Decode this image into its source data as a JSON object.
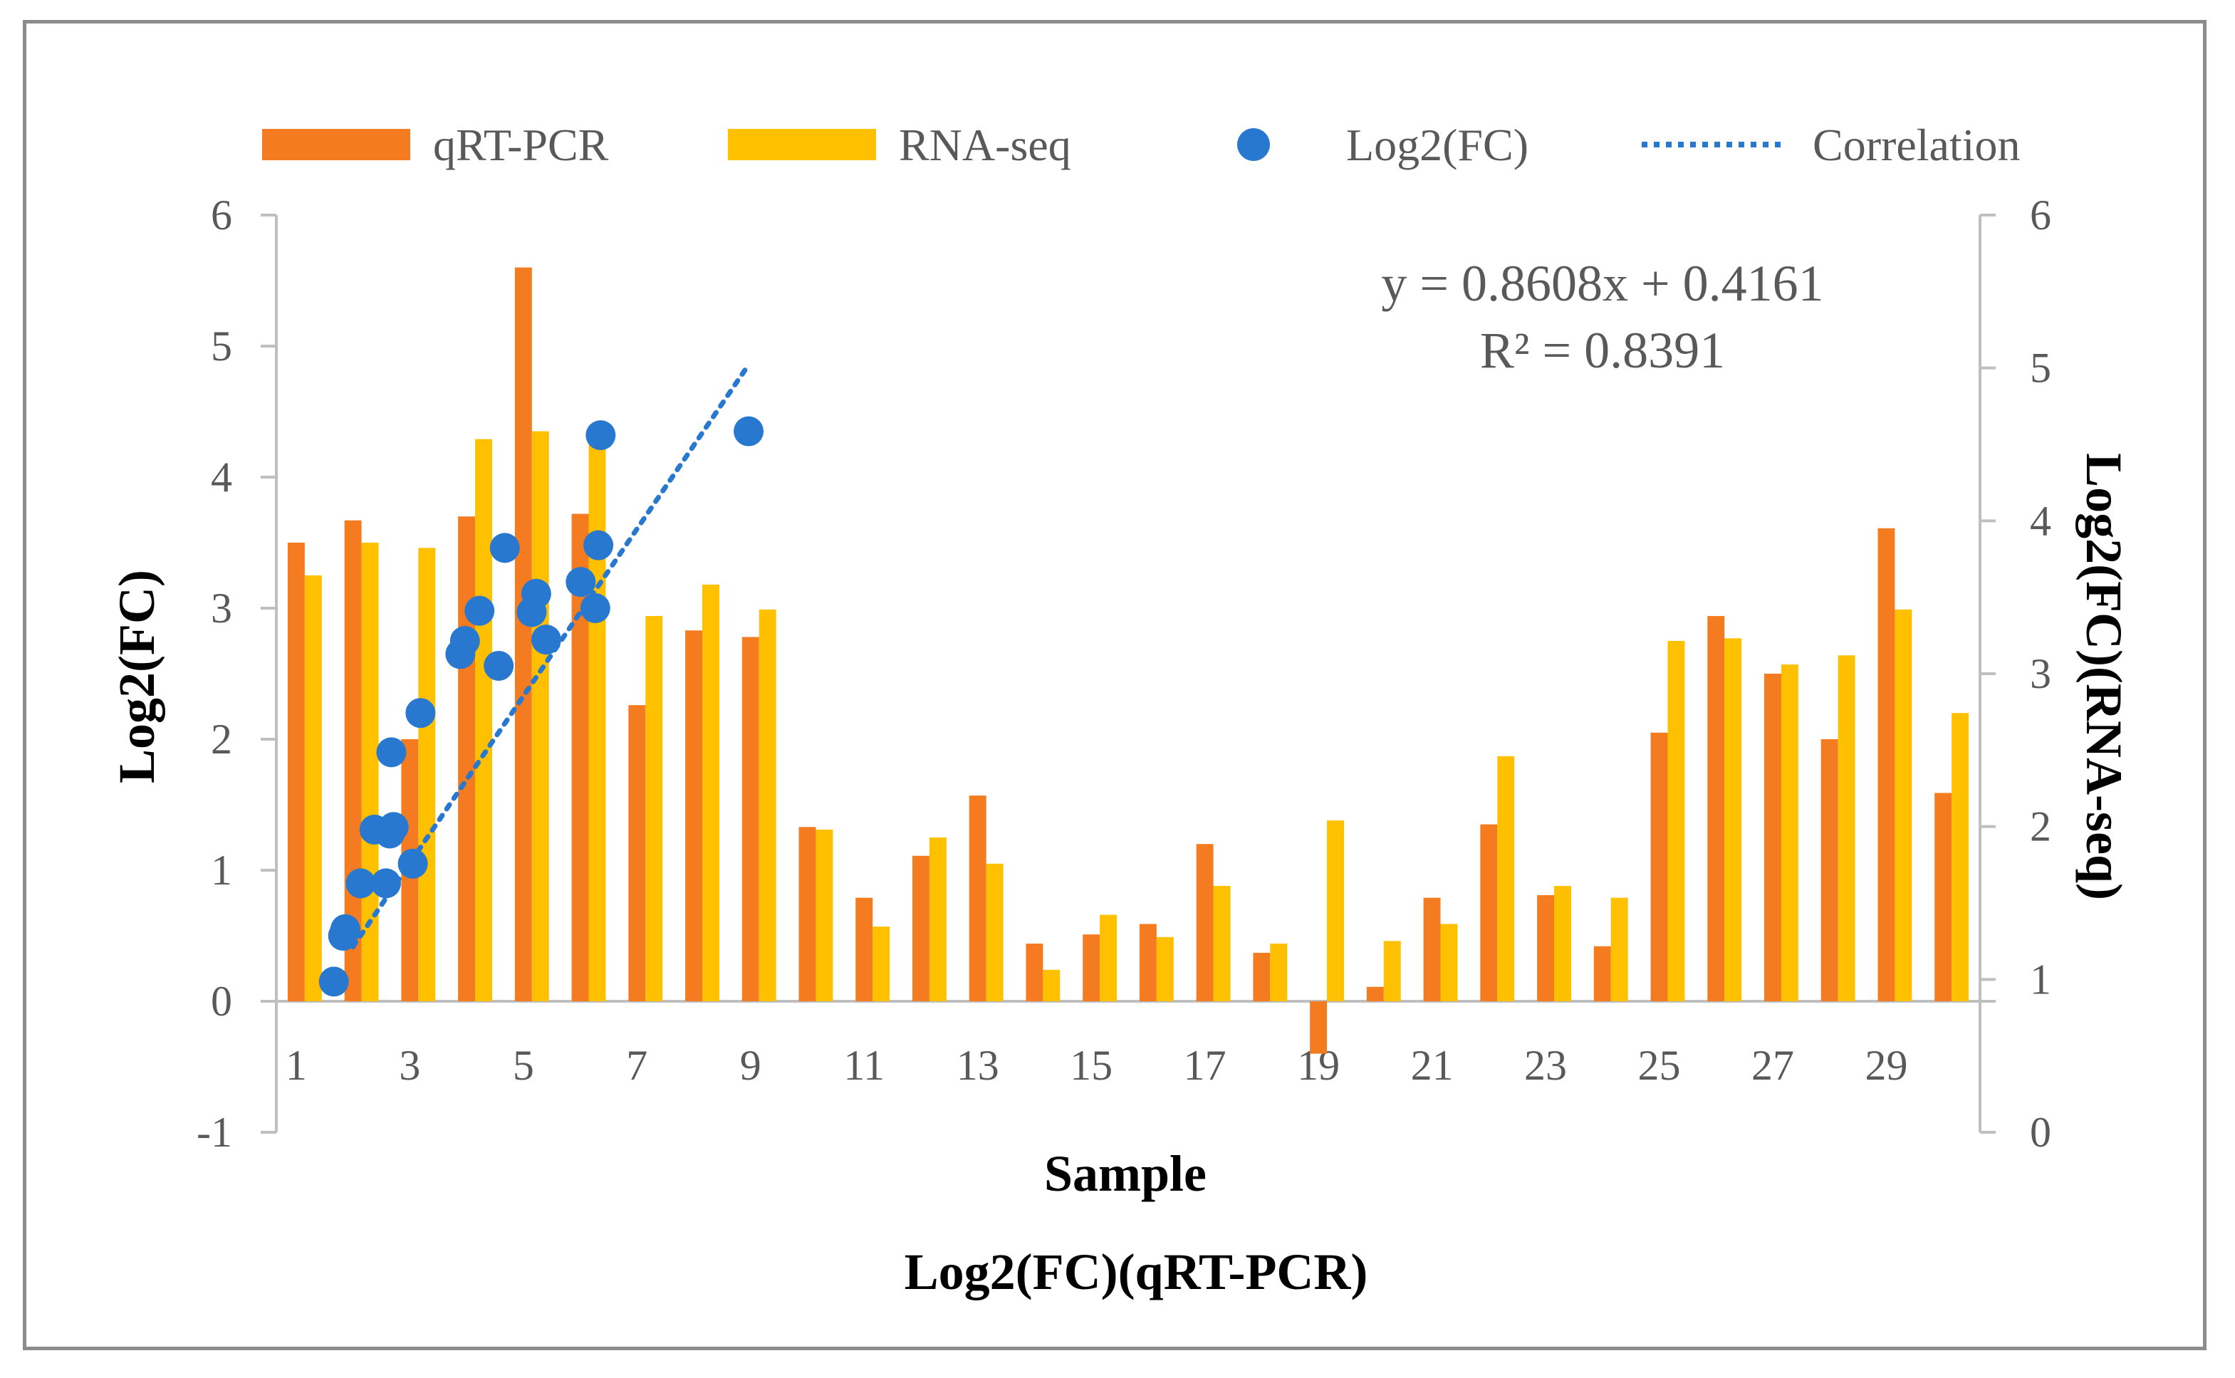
{
  "chart_data": {
    "type": "bar",
    "title": "",
    "xlabel": "Sample",
    "xlabel2": "Log2(FC)(qRT-PCR)",
    "ylabel": "Log2(FC)",
    "ylabel_right": "Log2(FC)(RNA-seq)",
    "categories": [
      "1",
      "2",
      "3",
      "4",
      "5",
      "6",
      "7",
      "8",
      "9",
      "10",
      "11",
      "12",
      "13",
      "14",
      "15",
      "16",
      "17",
      "18",
      "19",
      "20",
      "21",
      "22",
      "23",
      "24",
      "25",
      "26",
      "27",
      "28",
      "29",
      "30"
    ],
    "x_tick_labels": [
      "1",
      "3",
      "5",
      "7",
      "9",
      "11",
      "13",
      "15",
      "17",
      "19",
      "21",
      "23",
      "25",
      "27",
      "29"
    ],
    "ylim": [
      -1,
      6
    ],
    "y_ticks": [
      "-1",
      "0",
      "1",
      "2",
      "3",
      "4",
      "5",
      "6"
    ],
    "ylim_right": [
      0,
      6
    ],
    "y_ticks_right": [
      "0",
      "1",
      "2",
      "3",
      "4",
      "5",
      "6"
    ],
    "series": [
      {
        "name": "qRT-PCR",
        "color": "#F47B20",
        "values": [
          3.5,
          3.67,
          2.0,
          3.7,
          5.6,
          3.72,
          2.26,
          2.83,
          2.78,
          1.33,
          0.79,
          1.11,
          1.57,
          0.44,
          0.51,
          0.59,
          1.2,
          0.37,
          -0.4,
          0.11,
          0.79,
          1.35,
          0.81,
          0.42,
          2.05,
          2.94,
          2.5,
          2.0,
          3.61,
          1.59
        ]
      },
      {
        "name": "RNA-seq",
        "color": "#FFC000",
        "values": [
          3.25,
          3.5,
          3.46,
          4.29,
          4.35,
          4.31,
          2.94,
          3.18,
          2.99,
          1.31,
          0.57,
          1.25,
          1.05,
          0.24,
          0.66,
          0.49,
          0.88,
          0.44,
          1.38,
          0.46,
          0.59,
          1.87,
          0.88,
          0.79,
          2.75,
          2.77,
          2.57,
          2.64,
          2.99,
          2.2
        ]
      }
    ],
    "scatter": {
      "name": "Log2(FC)",
      "color": "#2878D0",
      "x_range": [
        -1,
        6
      ],
      "points": [
        {
          "x": -0.25,
          "y": 0.15
        },
        {
          "x": -0.13,
          "y": 0.5
        },
        {
          "x": -0.1,
          "y": 0.55
        },
        {
          "x": 0.1,
          "y": 0.9
        },
        {
          "x": 0.28,
          "y": 1.31
        },
        {
          "x": 0.43,
          "y": 0.9
        },
        {
          "x": 0.48,
          "y": 1.28
        },
        {
          "x": 0.53,
          "y": 1.33
        },
        {
          "x": 0.78,
          "y": 1.05
        },
        {
          "x": 0.5,
          "y": 1.9
        },
        {
          "x": 0.88,
          "y": 2.2
        },
        {
          "x": 1.4,
          "y": 2.65
        },
        {
          "x": 1.46,
          "y": 2.75
        },
        {
          "x": 1.65,
          "y": 2.98
        },
        {
          "x": 1.98,
          "y": 3.46
        },
        {
          "x": 1.9,
          "y": 2.56
        },
        {
          "x": 2.33,
          "y": 2.97
        },
        {
          "x": 2.39,
          "y": 3.11
        },
        {
          "x": 2.52,
          "y": 2.76
        },
        {
          "x": 2.97,
          "y": 3.2
        },
        {
          "x": 3.16,
          "y": 3.0
        },
        {
          "x": 3.2,
          "y": 3.48
        },
        {
          "x": 3.23,
          "y": 4.32
        },
        {
          "x": 5.16,
          "y": 4.35
        }
      ]
    },
    "trendline": {
      "name": "Correlation",
      "color": "#2878D0",
      "slope": 0.8608,
      "intercept": 0.4161,
      "x_from": 0.0,
      "x_to": 5.15
    },
    "equation": "y = 0.8608x + 0.4161",
    "r_squared": "R² = 0.8391",
    "legend": [
      {
        "label": "qRT-PCR",
        "kind": "bar",
        "color": "#F47B20"
      },
      {
        "label": "RNA-seq",
        "kind": "bar",
        "color": "#FFC000"
      },
      {
        "label": "Log2(FC)",
        "kind": "dot",
        "color": "#2878D0"
      },
      {
        "label": "Correlation",
        "kind": "dotted-line",
        "color": "#2878D0"
      }
    ],
    "legend_position": "top"
  }
}
